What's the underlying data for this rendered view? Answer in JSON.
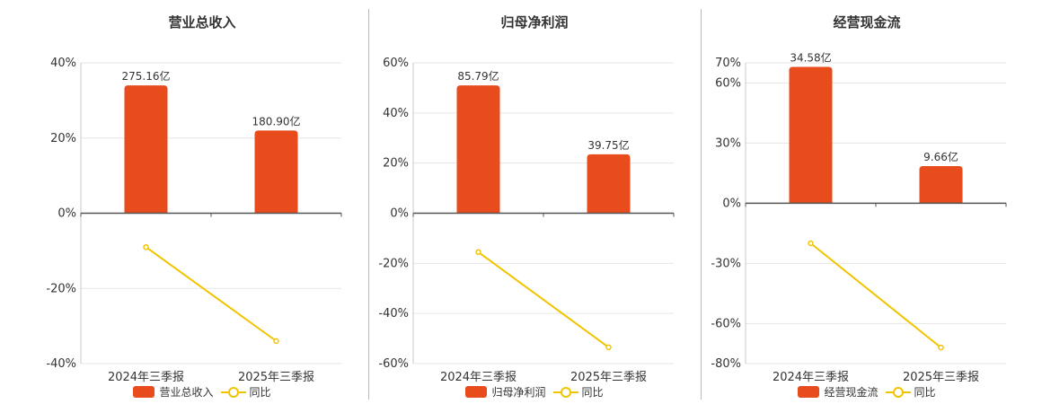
{
  "colors": {
    "bar": "#e84b1c",
    "line": "#f2c400",
    "grid": "#e6e6e6",
    "axis": "#555555"
  },
  "chart_data": [
    {
      "type": "bar+line",
      "title": "营业总收入",
      "categories": [
        "2024年三季报",
        "2025年三季报"
      ],
      "bar_series": {
        "name": "营业总收入",
        "values": [
          34.0,
          22.0
        ],
        "labels": [
          "275.16亿",
          "180.90亿"
        ]
      },
      "line_series": {
        "name": "同比",
        "values": [
          -9.0,
          -34.0
        ]
      },
      "ylim": [
        -40,
        40
      ],
      "yticks": [
        40,
        20,
        0,
        -20,
        -40
      ],
      "ytick_labels": [
        "40%",
        "20%",
        "0%",
        "-20%",
        "-40%"
      ]
    },
    {
      "type": "bar+line",
      "title": "归母净利润",
      "categories": [
        "2024年三季报",
        "2025年三季报"
      ],
      "bar_series": {
        "name": "归母净利润",
        "values": [
          51.0,
          23.5
        ],
        "labels": [
          "85.79亿",
          "39.75亿"
        ]
      },
      "line_series": {
        "name": "同比",
        "values": [
          -15.5,
          -53.5
        ]
      },
      "ylim": [
        -60,
        60
      ],
      "yticks": [
        60,
        40,
        20,
        0,
        -20,
        -40,
        -60
      ],
      "ytick_labels": [
        "60%",
        "40%",
        "20%",
        "0%",
        "-20%",
        "-40%",
        "-60%"
      ]
    },
    {
      "type": "bar+line",
      "title": "经营现金流",
      "categories": [
        "2024年三季报",
        "2025年三季报"
      ],
      "bar_series": {
        "name": "经营现金流",
        "values": [
          68.0,
          18.5
        ],
        "labels": [
          "34.58亿",
          "9.66亿"
        ]
      },
      "line_series": {
        "name": "同比",
        "values": [
          -20.0,
          -72.0
        ]
      },
      "ylim": [
        -80,
        70
      ],
      "yticks": [
        70,
        60,
        30,
        0,
        -30,
        -60,
        -80
      ],
      "ytick_labels": [
        "70%",
        "60%",
        "30%",
        "0%",
        "-30%",
        "-60%",
        "-80%"
      ]
    }
  ]
}
